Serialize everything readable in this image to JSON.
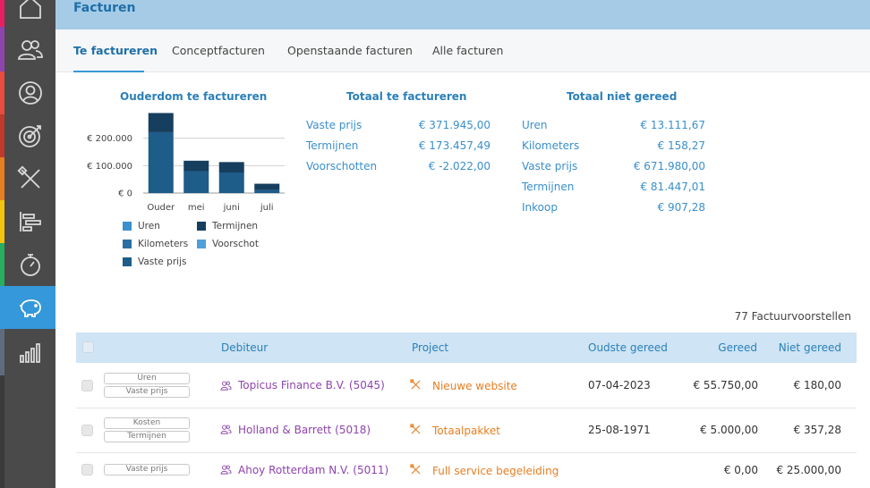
{
  "colors": {
    "sidebar_bg": "#4a4a4a",
    "sidebar_active": "#3498db",
    "header_bg": "#a6cbe6",
    "accent": "#2a80b9",
    "debiteur": "#8e44ad",
    "project": "#e67e22",
    "stripe": [
      "#e91e63",
      "#8e44ad",
      "#e74c3c",
      "#c0392b",
      "#e67e22",
      "#f1c40f",
      "#27ae60",
      "#3498db",
      "#5d6d7e"
    ]
  },
  "sidebar": {
    "items": [
      {
        "icon": "home-icon",
        "active": false
      },
      {
        "icon": "users-icon",
        "active": false
      },
      {
        "icon": "user-icon",
        "active": false
      },
      {
        "icon": "target-icon",
        "active": false
      },
      {
        "icon": "tools-icon",
        "active": false
      },
      {
        "icon": "timeline-icon",
        "active": false
      },
      {
        "icon": "stopwatch-icon",
        "active": false
      },
      {
        "icon": "piggy-bank-icon",
        "active": true
      },
      {
        "icon": "bar-chart-icon",
        "active": false
      }
    ]
  },
  "header": {
    "title": "Facturen"
  },
  "tabs": [
    {
      "label": "Te factureren",
      "active": true
    },
    {
      "label": "Conceptfacturen",
      "active": false
    },
    {
      "label": "Openstaande facturen",
      "active": false
    },
    {
      "label": "Alle facturen",
      "active": false
    }
  ],
  "ouderdom": {
    "title": "Ouderdom te factureren"
  },
  "chart_data": {
    "type": "bar",
    "stacked": true,
    "categories": [
      "Ouder",
      "mei",
      "juni",
      "juli"
    ],
    "series": [
      {
        "name": "Uren",
        "color": "#3a8fcc",
        "values": [
          0,
          0,
          0,
          0
        ]
      },
      {
        "name": "Kilometers",
        "color": "#2a6fa3",
        "values": [
          0,
          0,
          0,
          0
        ]
      },
      {
        "name": "Vaste prijs",
        "color": "#1e5c8a",
        "values": [
          222000,
          80000,
          75000,
          11000
        ]
      },
      {
        "name": "Termijnen",
        "color": "#163e5e",
        "values": [
          70000,
          38000,
          38000,
          23000
        ]
      },
      {
        "name": "Voorschot",
        "color": "#4ea0d8",
        "values": [
          0,
          0,
          0,
          0
        ]
      }
    ],
    "yticks": [
      "€ 200.000",
      "€ 100.000",
      "€ 0"
    ],
    "ytick_values": [
      200000,
      100000,
      0
    ],
    "ylim": [
      0,
      300000
    ],
    "grid": true,
    "legend_position": "bottom"
  },
  "totaal": {
    "title": "Totaal te factureren",
    "rows": [
      {
        "label": "Vaste prijs",
        "value": "€ 371.945,00"
      },
      {
        "label": "Termijnen",
        "value": "€ 173.457,49"
      },
      {
        "label": "Voorschotten",
        "value": "€ -2.022,00"
      }
    ]
  },
  "niet_gereed": {
    "title": "Totaal niet gereed",
    "rows": [
      {
        "label": "Uren",
        "value": "€ 13.111,67"
      },
      {
        "label": "Kilometers",
        "value": "€ 158,27"
      },
      {
        "label": "Vaste prijs",
        "value": "€ 671.980,00"
      },
      {
        "label": "Termijnen",
        "value": "€ 81.447,01"
      },
      {
        "label": "Inkoop",
        "value": "€ 907,28"
      }
    ]
  },
  "count_label": "77 Factuurvoorstellen",
  "table": {
    "columns": {
      "debiteur": "Debiteur",
      "project": "Project",
      "oudste": "Oudste gereed",
      "gereed": "Gereed",
      "niet_gereed": "Niet gereed"
    },
    "rows": [
      {
        "tags": [
          "Uren",
          "Vaste prijs"
        ],
        "debiteur": "Topicus Finance B.V. (5045)",
        "project": "Nieuwe website",
        "oudste": "07-04-2023",
        "gereed": "€ 55.750,00",
        "niet_gereed": "€ 180,00"
      },
      {
        "tags": [
          "Kosten",
          "Termijnen"
        ],
        "debiteur": "Holland & Barrett (5018)",
        "project": "Totaalpakket",
        "oudste": "25-08-1971",
        "gereed": "€ 5.000,00",
        "niet_gereed": "€ 357,28"
      },
      {
        "tags": [
          "Vaste prijs"
        ],
        "debiteur": "Ahoy Rotterdam N.V. (5011)",
        "project": "Full service begeleiding",
        "oudste": "",
        "gereed": "€ 0,00",
        "niet_gereed": "€ 25.000,00"
      }
    ]
  }
}
